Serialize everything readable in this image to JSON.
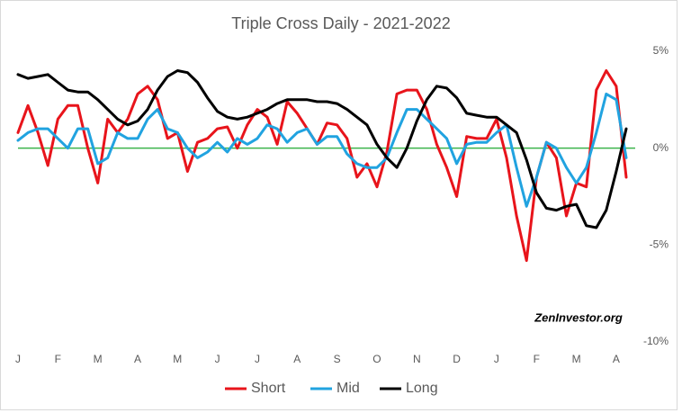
{
  "chart_data": {
    "type": "line",
    "title": "Triple Cross Daily - 2021-2022",
    "annotation": "ZenInvestor.org",
    "categories": [
      "J",
      null,
      null,
      null,
      "F",
      null,
      null,
      null,
      "M",
      null,
      null,
      null,
      "A",
      null,
      null,
      null,
      "M",
      null,
      null,
      null,
      "J",
      null,
      null,
      null,
      "J",
      null,
      null,
      null,
      "A",
      null,
      null,
      null,
      "S",
      null,
      null,
      null,
      "O",
      null,
      null,
      null,
      "N",
      null,
      null,
      null,
      "D",
      null,
      null,
      null,
      "J",
      null,
      null,
      null,
      "F",
      null,
      null,
      null,
      "M",
      null,
      null,
      null,
      "A",
      null
    ],
    "series": [
      {
        "name": "Short",
        "color": "#e8141b",
        "values": [
          0.8,
          2.2,
          0.8,
          -0.9,
          1.5,
          2.2,
          2.2,
          0.0,
          -1.8,
          1.5,
          0.8,
          1.5,
          2.8,
          3.2,
          2.5,
          0.5,
          0.8,
          -1.2,
          0.3,
          0.5,
          1.0,
          1.1,
          0.0,
          1.2,
          2.0,
          1.6,
          0.2,
          2.4,
          1.8,
          1.0,
          0.2,
          1.3,
          1.2,
          0.5,
          -1.5,
          -0.8,
          -2.0,
          -0.2,
          2.8,
          3.0,
          3.0,
          2.0,
          0.2,
          -1.0,
          -2.5,
          0.6,
          0.5,
          0.5,
          1.5,
          -0.5,
          -3.5,
          -5.8,
          -1.5,
          0.3,
          -0.5,
          -3.5,
          -1.8,
          -2.0,
          3.0,
          4.0,
          3.2,
          -1.5
        ]
      },
      {
        "name": "Mid",
        "color": "#21a3e0",
        "values": [
          0.4,
          0.8,
          1.0,
          1.0,
          0.5,
          0.0,
          1.0,
          1.0,
          -0.8,
          -0.5,
          0.8,
          0.5,
          0.5,
          1.5,
          2.0,
          1.0,
          0.8,
          0.0,
          -0.5,
          -0.2,
          0.3,
          -0.2,
          0.5,
          0.2,
          0.5,
          1.2,
          1.0,
          0.3,
          0.8,
          1.0,
          0.2,
          0.6,
          0.6,
          -0.3,
          -0.8,
          -1.0,
          -1.0,
          -0.5,
          0.8,
          2.0,
          2.0,
          1.5,
          1.0,
          0.5,
          -0.8,
          0.2,
          0.3,
          0.3,
          0.8,
          1.2,
          -1.0,
          -3.0,
          -1.5,
          0.3,
          0.0,
          -1.0,
          -1.8,
          -1.0,
          0.8,
          2.8,
          2.5,
          -0.5
        ]
      },
      {
        "name": "Long",
        "color": "#000000",
        "values": [
          3.8,
          3.6,
          3.7,
          3.8,
          3.4,
          3.0,
          2.9,
          2.9,
          2.5,
          2.0,
          1.5,
          1.2,
          1.4,
          2.0,
          3.0,
          3.7,
          4.0,
          3.9,
          3.4,
          2.6,
          1.9,
          1.6,
          1.5,
          1.6,
          1.8,
          2.0,
          2.3,
          2.5,
          2.5,
          2.5,
          2.4,
          2.4,
          2.3,
          2.0,
          1.6,
          1.2,
          0.2,
          -0.5,
          -1.0,
          0.0,
          1.4,
          2.5,
          3.2,
          3.1,
          2.6,
          1.8,
          1.7,
          1.6,
          1.6,
          1.2,
          0.8,
          -0.6,
          -2.3,
          -3.1,
          -3.2,
          -3.0,
          -2.9,
          -4.0,
          -4.1,
          -3.2,
          -1.2,
          1.0
        ]
      }
    ],
    "ylim": [
      -10,
      5
    ],
    "yticks": [
      {
        "value": 5,
        "label": "5%"
      },
      {
        "value": 0,
        "label": "0%"
      },
      {
        "value": -5,
        "label": "-5%"
      },
      {
        "value": -10,
        "label": "-10%"
      }
    ],
    "y_axis_side": "right",
    "axis_line_color": "#3cb44b",
    "grid": false,
    "legend": "bottom"
  }
}
